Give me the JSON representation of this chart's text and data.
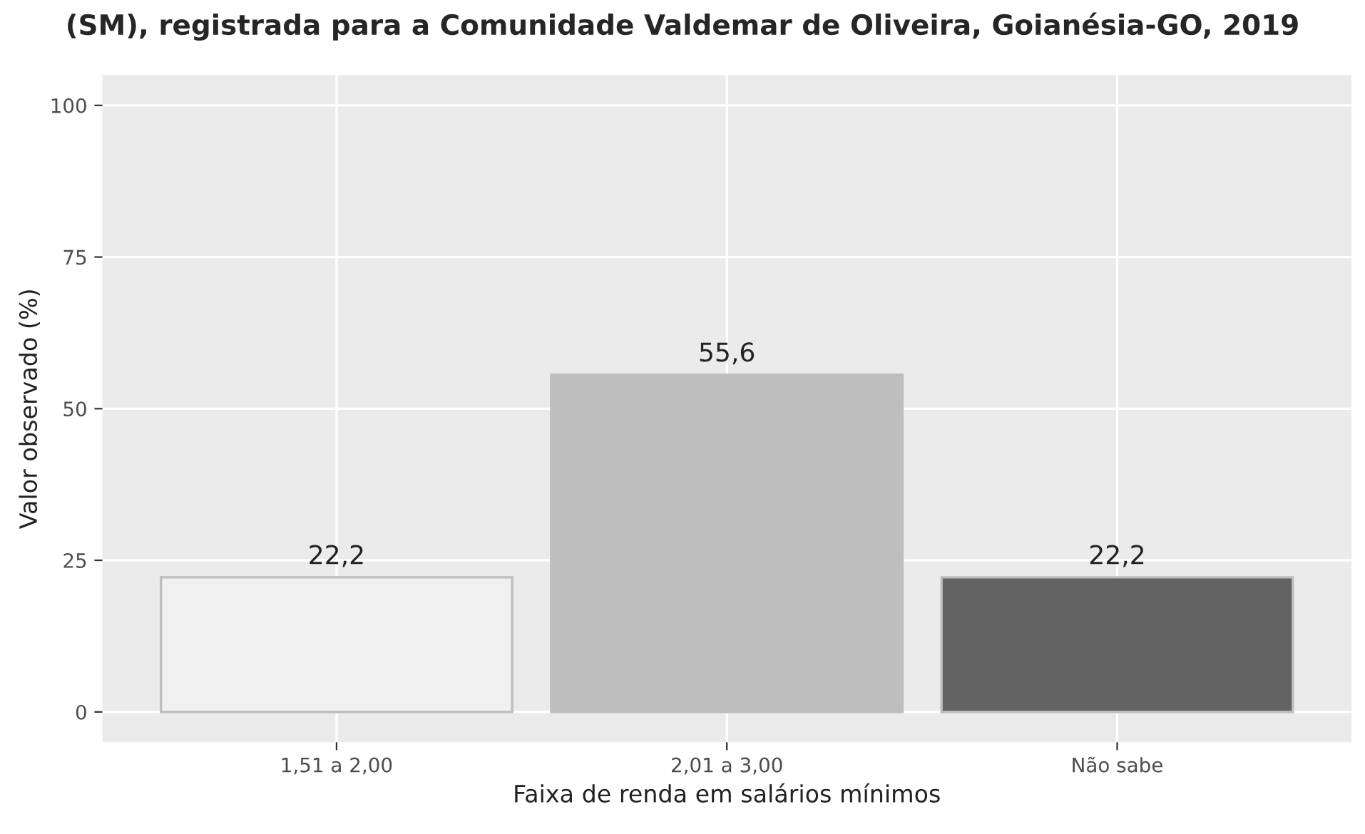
{
  "chart_data": {
    "type": "bar",
    "title": "(SM), registrada para a Comunidade Valdemar de Oliveira, Goianésia-GO, 2019",
    "xlabel": "Faixa de renda em salários mínimos",
    "ylabel": "Valor observado (%)",
    "categories": [
      "1,51 a 2,00",
      "2,01 a 3,00",
      "Não sabe"
    ],
    "values": [
      22.2,
      55.6,
      22.2
    ],
    "value_labels": [
      "22,2",
      "55,6",
      "22,2"
    ],
    "colors": [
      "#f0f0f0",
      "#bebebe",
      "#636363"
    ],
    "ylim": [
      -5,
      105
    ],
    "yticks": [
      0,
      25,
      50,
      75,
      100
    ],
    "grid": true
  }
}
